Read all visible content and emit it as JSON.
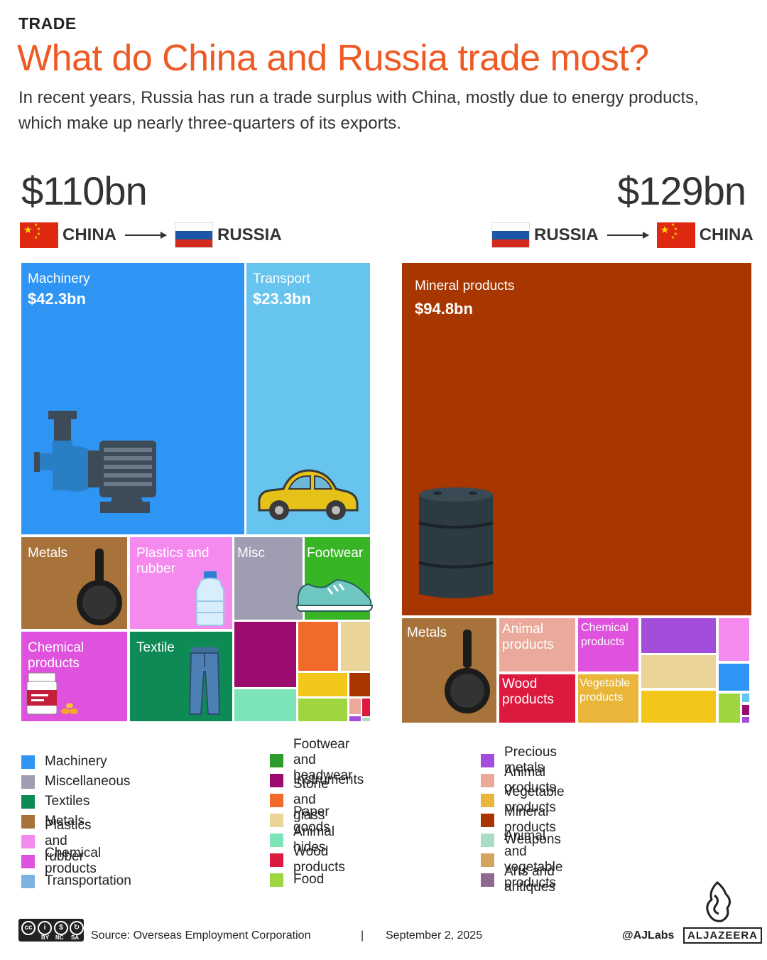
{
  "header": {
    "kicker": "TRADE",
    "title": "What do China and Russia trade most?",
    "subtitle": "In recent years, Russia has run a trade surplus with China, mostly due to energy products, which make up nearly three-quarters of its exports."
  },
  "flows": {
    "china_to_russia": {
      "total": "$110bn",
      "from": "CHINA",
      "to": "RUSSIA"
    },
    "russia_to_china": {
      "total": "$129bn",
      "from": "RUSSIA",
      "to": "CHINA"
    }
  },
  "chart_data": [
    {
      "type": "treemap",
      "title": "CHINA → RUSSIA",
      "total": 110,
      "unit": "$bn",
      "categories": [
        "Machinery",
        "Transport",
        "Metals",
        "Plastics and rubber",
        "Misc",
        "Footwear",
        "Chemical products",
        "Textile"
      ],
      "values": [
        42.3,
        23.3,
        null,
        null,
        null,
        null,
        null,
        null
      ],
      "labels": {
        "machinery_name": "Machinery",
        "machinery_value": "$42.3bn",
        "transport_name": "Transport",
        "transport_value": "$23.3bn",
        "metals": "Metals",
        "plastics": "Plastics and rubber",
        "misc": "Misc",
        "footwear": "Footwear",
        "chemical": "Chemical products",
        "textile": "Textile"
      }
    },
    {
      "type": "treemap",
      "title": "RUSSIA → CHINA",
      "total": 129,
      "unit": "$bn",
      "categories": [
        "Mineral products",
        "Metals",
        "Animal products",
        "Chemical products",
        "Wood products",
        "Vegetable products"
      ],
      "values": [
        94.8,
        null,
        null,
        null,
        null,
        null
      ],
      "labels": {
        "mineral_name": "Mineral products",
        "mineral_value": "$94.8bn",
        "metals": "Metals",
        "animal": "Animal products",
        "chemical": "Chemical products",
        "wood": "Wood products",
        "vegetable": "Vegetable products"
      }
    }
  ],
  "legend": [
    {
      "label": "Machinery",
      "color": "#2f95f5"
    },
    {
      "label": "Miscellaneous",
      "color": "#9f9db1"
    },
    {
      "label": "Textiles",
      "color": "#0e8a54"
    },
    {
      "label": "Metals",
      "color": "#a8733a"
    },
    {
      "label": "Plastics and rubber",
      "color": "#f58aee"
    },
    {
      "label": "Chemical products",
      "color": "#df52dd"
    },
    {
      "label": "Transportation",
      "color": "#7db3e0"
    },
    {
      "label": "Footwear and headwear",
      "color": "#2d9a2d"
    },
    {
      "label": "Instruments",
      "color": "#9b0c6e"
    },
    {
      "label": "Stone and glass",
      "color": "#f26a2a"
    },
    {
      "label": "Paper goods",
      "color": "#ead49a"
    },
    {
      "label": "Animal hides",
      "color": "#7de4b8"
    },
    {
      "label": "Wood products",
      "color": "#dc1a3f"
    },
    {
      "label": "Food",
      "color": "#9fd63f"
    },
    {
      "label": "Precious metals",
      "color": "#a34ddc"
    },
    {
      "label": "Animal products",
      "color": "#eaa99a"
    },
    {
      "label": "Vegetable products",
      "color": "#eab63a"
    },
    {
      "label": "Mineral products",
      "color": "#a83600"
    },
    {
      "label": "Weapons",
      "color": "#a9ddc8"
    },
    {
      "label": "Animal and vegetable products",
      "color": "#d3a55c"
    },
    {
      "label": "Arts and antiques",
      "color": "#8e6a8e"
    }
  ],
  "footer": {
    "source": "Source:  Overseas Employment Corporation",
    "separator": "|",
    "date": "September 2, 2025",
    "handle": "@AJLabs",
    "brand": "ALJAZEERA",
    "cc_labels": [
      "BY",
      "NC",
      "SA"
    ]
  },
  "colors": {
    "headline": "#ee5a24",
    "machinery": "#2f95f5",
    "transport": "#66c4ee",
    "metals": "#a8733a",
    "plastics": "#f58aee",
    "misc": "#9f9db1",
    "footwear": "#37b524",
    "chemical": "#df52dd",
    "textile": "#0e8a54",
    "mineral": "#a83600",
    "animal_products": "#eaa99a",
    "wood": "#dc1a3f",
    "vegetable": "#eab63a"
  }
}
